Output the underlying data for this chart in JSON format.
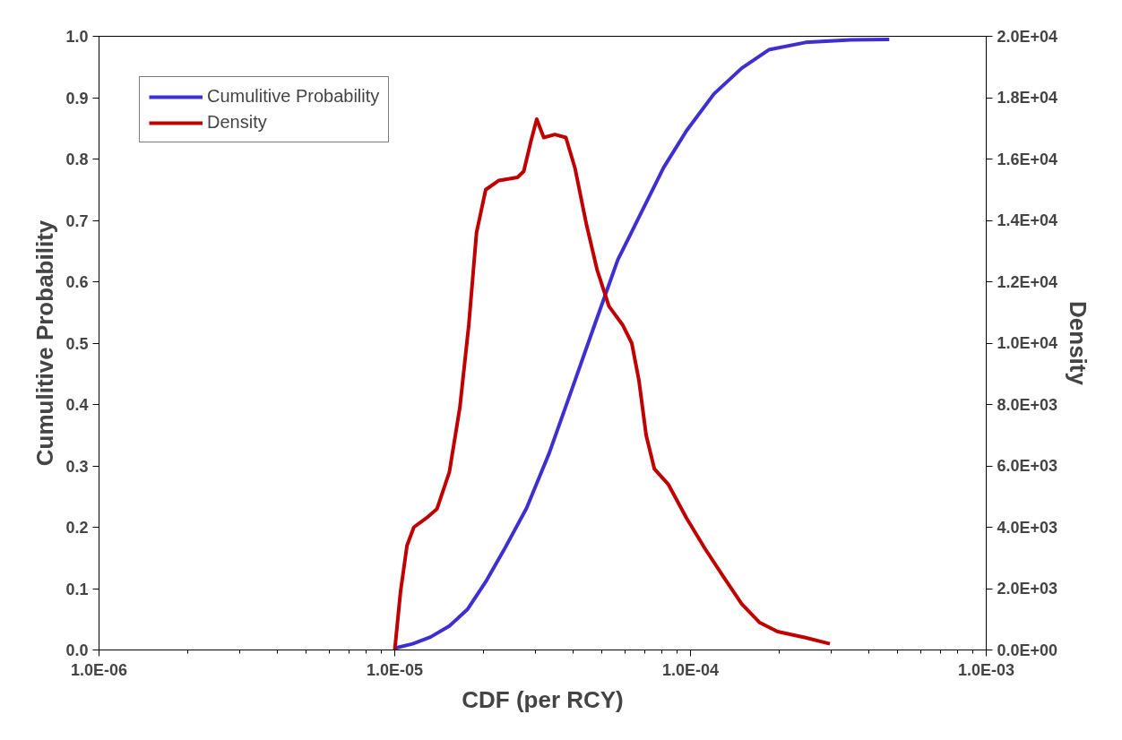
{
  "chart_data": {
    "type": "line",
    "xlabel": "CDF (per RCY)",
    "ylabel": "Cumulitive Probability",
    "y2label": "Density",
    "log": "x",
    "grid": false,
    "legend": "top left",
    "marker": "none",
    "line_style": "solid",
    "xlim": [
      1e-06,
      0.001
    ],
    "xticks": [
      {
        "value": 1e-06,
        "label": "1.0E-06"
      },
      {
        "value": 1e-05,
        "label": "1.0E-05"
      },
      {
        "value": 0.0001,
        "label": "1.0E-04"
      },
      {
        "value": 0.001,
        "label": "1.0E-03"
      }
    ],
    "ylim": [
      0,
      1
    ],
    "yticks": [
      {
        "value": 0,
        "label": "0.0"
      },
      {
        "value": 0.1,
        "label": "0.1"
      },
      {
        "value": 0.2,
        "label": "0.2"
      },
      {
        "value": 0.3,
        "label": "0.3"
      },
      {
        "value": 0.4,
        "label": "0.4"
      },
      {
        "value": 0.5,
        "label": "0.5"
      },
      {
        "value": 0.6,
        "label": "0.6"
      },
      {
        "value": 0.7,
        "label": "0.7"
      },
      {
        "value": 0.8,
        "label": "0.8"
      },
      {
        "value": 0.9,
        "label": "0.9"
      },
      {
        "value": 1,
        "label": "1.0"
      }
    ],
    "y2lim": [
      0,
      20000
    ],
    "y2ticks": [
      {
        "value": 0,
        "label": "0.0E+00"
      },
      {
        "value": 2000,
        "label": "2.0E+03"
      },
      {
        "value": 4000,
        "label": "4.0E+03"
      },
      {
        "value": 6000,
        "label": "6.0E+03"
      },
      {
        "value": 8000,
        "label": "8.0E+03"
      },
      {
        "value": 10000,
        "label": "1.0E+04"
      },
      {
        "value": 12000,
        "label": "1.2E+04"
      },
      {
        "value": 14000,
        "label": "1.4E+04"
      },
      {
        "value": 16000,
        "label": "1.6E+04"
      },
      {
        "value": 18000,
        "label": "1.8E+04"
      },
      {
        "value": 20000,
        "label": "2.0E+04"
      }
    ],
    "series": [
      {
        "name": "Cumulitive Probability",
        "color": "#3f2fd0",
        "x": [
          1e-05,
          1.15e-05,
          1.32e-05,
          1.53e-05,
          1.76e-05,
          2.03e-05,
          2.34e-05,
          2.79e-05,
          3.33e-05,
          3.98e-05,
          4.75e-05,
          5.68e-05,
          6.79e-05,
          8.11e-05,
          9.69e-05,
          0.00012,
          0.000149,
          0.000184,
          0.000245,
          0.000348,
          0.00047
        ],
        "values": [
          0.003,
          0.01,
          0.021,
          0.039,
          0.066,
          0.111,
          0.163,
          0.231,
          0.321,
          0.426,
          0.531,
          0.636,
          0.711,
          0.786,
          0.846,
          0.906,
          0.948,
          0.978,
          0.99,
          0.994,
          0.995
        ]
      },
      {
        "name": "Density",
        "color": "#c00000",
        "axis": "y2",
        "x": [
          1e-05,
          1.046e-05,
          1.1e-05,
          1.16e-05,
          1.28e-05,
          1.39e-05,
          1.53e-05,
          1.66e-05,
          1.78e-05,
          1.89e-05,
          2.03e-05,
          2.25e-05,
          2.6e-05,
          2.73e-05,
          2.89e-05,
          3.02e-05,
          3.19e-05,
          3.48e-05,
          3.79e-05,
          4.07e-05,
          4.44e-05,
          4.83e-05,
          5.3e-05,
          5.89e-05,
          6.33e-05,
          6.69e-05,
          7.08e-05,
          7.55e-05,
          8.41e-05,
          9.69e-05,
          0.000112,
          0.000129,
          0.000149,
          0.000171,
          0.000197,
          0.000245,
          0.000296
        ],
        "values": [
          0,
          1900,
          3400,
          4000,
          4300,
          4600,
          5800,
          7900,
          10600,
          13600,
          15000,
          15300,
          15400,
          15600,
          16600,
          17300,
          16700,
          16800,
          16700,
          15700,
          13900,
          12400,
          11200,
          10600,
          10000,
          8800,
          7000,
          5900,
          5400,
          4300,
          3300,
          2400,
          1500,
          900,
          600,
          400,
          200
        ]
      }
    ]
  }
}
